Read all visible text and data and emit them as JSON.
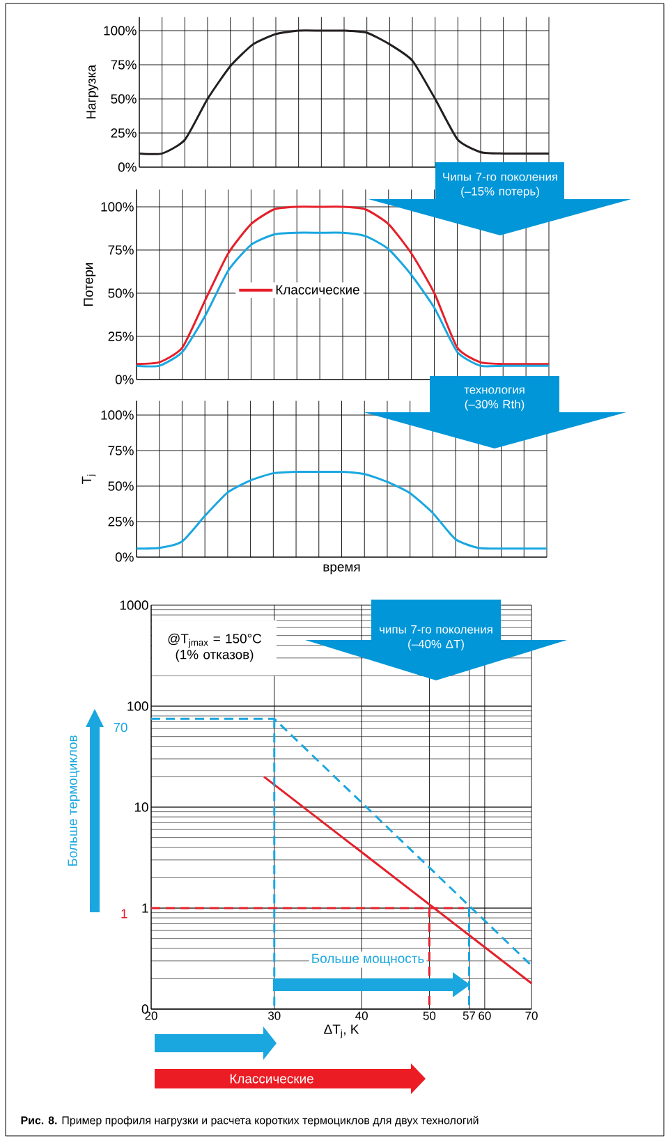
{
  "chart_data": [
    {
      "type": "line",
      "categories": [
        null,
        null,
        null,
        null,
        null,
        null,
        null,
        null,
        null,
        null,
        null,
        null,
        null,
        null,
        null,
        null,
        null,
        null,
        null
      ],
      "values": [
        10,
        10,
        20,
        50,
        74,
        90,
        97.5,
        100,
        100,
        100,
        98.5,
        90,
        78,
        50,
        20,
        11,
        10,
        10,
        10
      ],
      "color": "#231f20",
      "ylabel": "Нагрузка",
      "ylim": [
        0,
        110
      ],
      "yticks": [
        {
          "value": 0,
          "label": "0%"
        },
        {
          "value": 25,
          "label": "25%"
        },
        {
          "value": 50,
          "label": "50%"
        },
        {
          "value": 75,
          "label": "75%"
        },
        {
          "value": 100,
          "label": "100%"
        }
      ],
      "grid": true,
      "tick_labels": "y"
    },
    {
      "type": "line",
      "categories": [
        null,
        null,
        null,
        null,
        null,
        null,
        null,
        null,
        null,
        null,
        null,
        null,
        null,
        null,
        null,
        null,
        null,
        null,
        null
      ],
      "series": [
        {
          "name": "Классические",
          "color": "#e5202a",
          "values": [
            9,
            10,
            18.5,
            46,
            73,
            90,
            98.5,
            100,
            100,
            100,
            98.5,
            90,
            73,
            50,
            18.5,
            10,
            9,
            9,
            9
          ]
        },
        {
          "color": "#1aa7e0",
          "values": [
            8,
            8,
            16,
            37,
            63,
            78,
            84,
            85,
            85,
            85,
            83,
            75.5,
            60.5,
            41.5,
            16,
            8,
            8,
            8,
            8
          ]
        }
      ],
      "ylabel": "Потери",
      "ylim": [
        0,
        110
      ],
      "yticks": [
        {
          "value": 0,
          "label": "0%"
        },
        {
          "value": 25,
          "label": "25%"
        },
        {
          "value": 50,
          "label": "50%"
        },
        {
          "value": 75,
          "label": "75%"
        },
        {
          "value": 100,
          "label": "100%"
        }
      ],
      "grid": true,
      "tick_labels": "y",
      "legend": "left",
      "annotations": [
        "Чипы 7-го поколения (–15% потерь)"
      ]
    },
    {
      "type": "line",
      "categories": [
        null,
        null,
        null,
        null,
        null,
        null,
        null,
        null,
        null,
        null,
        null,
        null,
        null,
        null,
        null,
        null,
        null,
        null,
        null
      ],
      "values": [
        6,
        6.5,
        11,
        29,
        45.5,
        54,
        59,
        60,
        60,
        60,
        58.5,
        53,
        45,
        31,
        12.5,
        6.5,
        6,
        6,
        6
      ],
      "color": "#1aa7e0",
      "ylabel": "T$_{j}$",
      "xlabel": "время",
      "ylim": [
        0,
        110
      ],
      "yticks": [
        {
          "value": 0,
          "label": "0%"
        },
        {
          "value": 25,
          "label": "25%"
        },
        {
          "value": 50,
          "label": "50%"
        },
        {
          "value": 75,
          "label": "75%"
        },
        {
          "value": 100,
          "label": "100%"
        }
      ],
      "grid": true,
      "tick_labels": "y",
      "annotations": [
        "технология (–30% Rth)"
      ]
    },
    {
      "type": "line",
      "log": "xy",
      "xlim": [
        20,
        70
      ],
      "ylim": [
        0.1,
        1000
      ],
      "xticks": [
        20,
        30,
        40,
        50,
        57,
        60,
        70
      ],
      "yticks": [
        {
          "value": 0.1,
          "label": "0"
        },
        1,
        10,
        100,
        1000
      ],
      "xlabel": "ΔT$_{j}$, K",
      "grid": true,
      "series": [
        {
          "color": "#e5202a",
          "x": [
            29,
            70
          ],
          "values": [
            20,
            0.18
          ],
          "line_style": "solid"
        },
        {
          "color": "#1aa7e0",
          "x": [
            20,
            30,
            70
          ],
          "values": [
            75,
            75,
            0.27
          ],
          "line_style": "dashed"
        },
        {
          "color": "#e5202a",
          "x": [
            20,
            56
          ],
          "values": [
            1,
            1
          ],
          "line_style": "dashed"
        },
        {
          "color": "#e5202a",
          "x": [
            50,
            50
          ],
          "values": [
            1,
            0.1
          ],
          "line_style": "dashed"
        },
        {
          "color": "#1aa7e0",
          "x": [
            30,
            30
          ],
          "values": [
            75,
            0.1
          ],
          "line_style": "dashed"
        },
        {
          "color": "#1aa7e0",
          "x": [
            57,
            57
          ],
          "values": [
            1,
            0.1
          ],
          "line_style": "dashed"
        }
      ],
      "annotations": [
        "@T$_{jmax}$ = 150°C (1% отказов)",
        "чипы 7-го поколения (–40% ΔT)",
        {
          "text": "70",
          "x": 20,
          "y": 70
        },
        {
          "text": "1",
          "x": 20,
          "y": 1
        },
        "Больше термоциклов",
        "Больше мощность",
        "Классические",
        "**Рис. 8.** Пример профиля нагрузки и расчета коротких термоциклов для двух технологий"
      ]
    }
  ]
}
